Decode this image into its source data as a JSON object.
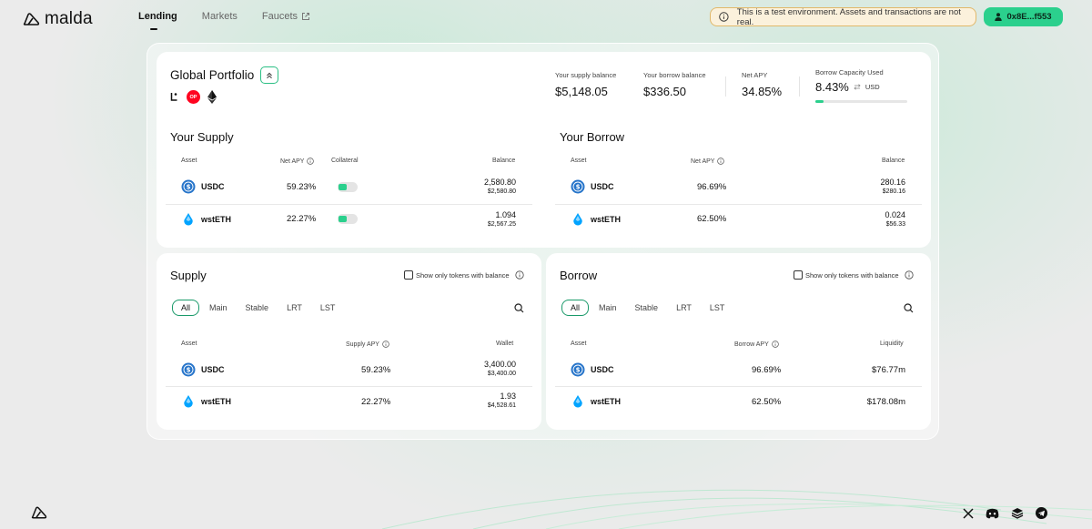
{
  "header": {
    "logo_text": "malda",
    "nav": [
      {
        "label": "Lending",
        "active": true
      },
      {
        "label": "Markets",
        "active": false
      },
      {
        "label": "Faucets",
        "active": false,
        "external": true
      }
    ],
    "notice": "This is a test environment. Assets and transactions are not real.",
    "wallet": "0x8E...f553"
  },
  "portfolio": {
    "title": "Global Portfolio",
    "chains": [
      "linea-icon",
      "optimism-icon",
      "ethereum-icon"
    ],
    "chain_op_label": "OP",
    "supply_balance_label": "Your supply balance",
    "supply_balance": "$5,148.05",
    "borrow_balance_label": "Your borrow balance",
    "borrow_balance": "$336.50",
    "net_apy_label": "Net APY",
    "net_apy": "34.85%",
    "capacity_label": "Borrow Capacity Used",
    "capacity": "8.43%",
    "capacity_currency": "USD",
    "capacity_fraction": 0.0843
  },
  "your_supply": {
    "title": "Your Supply",
    "headers": {
      "asset": "Asset",
      "apy": "Net APY",
      "collateral": "Collateral",
      "balance": "Balance"
    },
    "rows": [
      {
        "asset": "USDC",
        "apy": "59.23%",
        "collateral": true,
        "balance": "2,580.80",
        "balance_usd": "$2,580.80"
      },
      {
        "asset": "wstETH",
        "apy": "22.27%",
        "collateral": true,
        "balance": "1.094",
        "balance_usd": "$2,567.25"
      }
    ]
  },
  "your_borrow": {
    "title": "Your Borrow",
    "headers": {
      "asset": "Asset",
      "apy": "Net APY",
      "balance": "Balance"
    },
    "rows": [
      {
        "asset": "USDC",
        "apy": "96.69%",
        "balance": "280.16",
        "balance_usd": "$280.16"
      },
      {
        "asset": "wstETH",
        "apy": "62.50%",
        "balance": "0.024",
        "balance_usd": "$56.33"
      }
    ]
  },
  "supply": {
    "title": "Supply",
    "checkbox_label": "Show only tokens with balance",
    "tabs": [
      "All",
      "Main",
      "Stable",
      "LRT",
      "LST"
    ],
    "headers": {
      "asset": "Asset",
      "apy": "Supply APY",
      "wallet": "Wallet"
    },
    "rows": [
      {
        "asset": "USDC",
        "apy": "59.23%",
        "wallet": "3,400.00",
        "wallet_usd": "$3,400.00"
      },
      {
        "asset": "wstETH",
        "apy": "22.27%",
        "wallet": "1.93",
        "wallet_usd": "$4,528.61"
      }
    ]
  },
  "borrow": {
    "title": "Borrow",
    "checkbox_label": "Show only tokens with balance",
    "tabs": [
      "All",
      "Main",
      "Stable",
      "LRT",
      "LST"
    ],
    "headers": {
      "asset": "Asset",
      "apy": "Borrow APY",
      "liquidity": "Liquidity"
    },
    "rows": [
      {
        "asset": "USDC",
        "apy": "96.69%",
        "liquidity": "$76.77m"
      },
      {
        "asset": "wstETH",
        "apy": "62.50%",
        "liquidity": "$178.08m"
      }
    ]
  },
  "colors": {
    "accent": "#2bd08d",
    "notice_border": "#e1b86a",
    "notice_bg": "#fbf1dc",
    "usdc": "#2775ca",
    "wsteth": "#00a3ff",
    "op": "#ff0420"
  }
}
